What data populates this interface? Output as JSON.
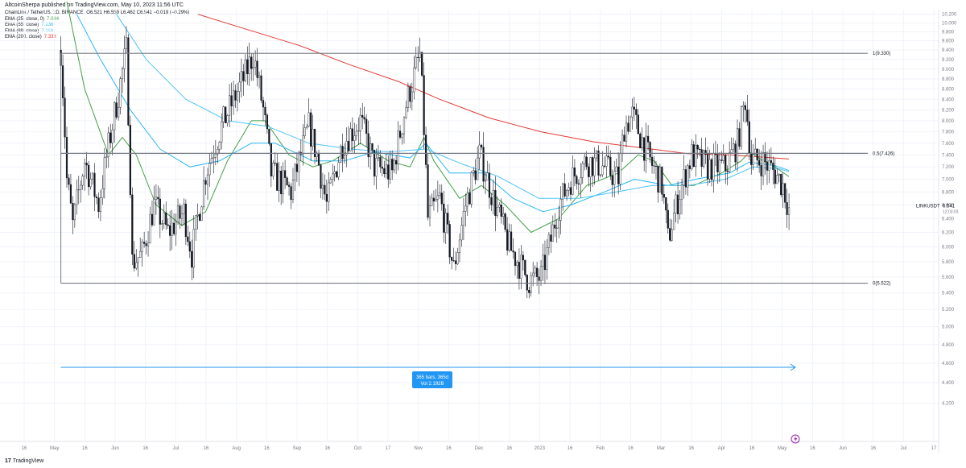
{
  "header": {
    "publisher_line": "AltcoinSherpa published on TradingView.com, May 10, 2023 11:56 UTC"
  },
  "symbol": {
    "name_line": "ChainLink / TetherUS, 1D, BINANCE",
    "ohlc": "O6.521 H6.559 L6.462 C6.541 −0.019 (−0.29%)",
    "ticker_tag": "LINKUSDT",
    "last_price": "6.541",
    "countdown": "12:03:03"
  },
  "indicators": [
    {
      "label": "EMA (25, close, 0)",
      "value": "7.044",
      "color": "#43a047"
    },
    {
      "label": "EMA (55, close)",
      "value": "7.136",
      "color": "#29b6f6"
    },
    {
      "label": "EMA (89, close)",
      "value": "7.118",
      "color": "#4fc3f7"
    },
    {
      "label": "EMA (200, close)",
      "value": "7.333",
      "color": "#e53935"
    }
  ],
  "fib_levels": [
    {
      "label": "1(9.330)",
      "price": 9.33
    },
    {
      "label": "0.5(7.426)",
      "price": 7.426
    },
    {
      "label": "0(5.522)",
      "price": 5.522
    }
  ],
  "measure_tool": {
    "line1": "365 bars, 365d",
    "line2": "Vol 2.192B",
    "color": "#2196f3"
  },
  "footer": {
    "logo_text": "TradingView",
    "logo_mark": "17"
  },
  "chart_data": {
    "type": "candlestick",
    "title": "ChainLink / TetherUS, 1D, BINANCE",
    "ylim": [
      4.0,
      10.25
    ],
    "y_scale": "log",
    "y_ticks": [
      "10.200",
      "10.000",
      "9.800",
      "9.600",
      "9.400",
      "9.200",
      "9.000",
      "8.800",
      "8.600",
      "8.400",
      "8.200",
      "8.000",
      "7.800",
      "7.600",
      "7.400",
      "7.200",
      "7.000",
      "6.800",
      "6.600",
      "6.400",
      "6.200",
      "6.000",
      "5.800",
      "5.600",
      "5.400",
      "5.200",
      "5.000",
      "4.800",
      "4.600",
      "4.400",
      "4.200"
    ],
    "x_ticks": [
      "16",
      "May",
      "16",
      "Jun",
      "16",
      "Jul",
      "16",
      "Aug",
      "16",
      "Sep",
      "16",
      "Oct",
      "17",
      "Nov",
      "16",
      "Dec",
      "16",
      "2023",
      "16",
      "Feb",
      "16",
      "Mar",
      "16",
      "Apr",
      "16",
      "May",
      "16",
      "Jun",
      "16",
      "Jul",
      "17"
    ],
    "price_path": [
      [
        "2022-05-08",
        9.4
      ],
      [
        "2022-05-11",
        7.0
      ],
      [
        "2022-05-14",
        6.3
      ],
      [
        "2022-05-20",
        7.3
      ],
      [
        "2022-05-27",
        6.6
      ],
      [
        "2022-06-06",
        8.5
      ],
      [
        "2022-06-10",
        9.4
      ],
      [
        "2022-06-13",
        5.8
      ],
      [
        "2022-06-18",
        5.9
      ],
      [
        "2022-06-24",
        6.6
      ],
      [
        "2022-07-01",
        6.2
      ],
      [
        "2022-07-09",
        6.5
      ],
      [
        "2022-07-13",
        5.9
      ],
      [
        "2022-07-20",
        7.1
      ],
      [
        "2022-07-28",
        7.9
      ],
      [
        "2022-08-08",
        8.8
      ],
      [
        "2022-08-13",
        9.3
      ],
      [
        "2022-08-18",
        8.2
      ],
      [
        "2022-08-22",
        7.1
      ],
      [
        "2022-09-01",
        6.8
      ],
      [
        "2022-09-10",
        7.9
      ],
      [
        "2022-09-14",
        7.4
      ],
      [
        "2022-09-19",
        6.6
      ],
      [
        "2022-09-27",
        7.6
      ],
      [
        "2022-10-06",
        8.0
      ],
      [
        "2022-10-13",
        7.2
      ],
      [
        "2022-10-22",
        7.1
      ],
      [
        "2022-10-29",
        8.3
      ],
      [
        "2022-11-05",
        9.3
      ],
      [
        "2022-11-09",
        6.4
      ],
      [
        "2022-11-15",
        6.7
      ],
      [
        "2022-11-22",
        5.7
      ],
      [
        "2022-11-28",
        6.6
      ],
      [
        "2022-12-05",
        7.4
      ],
      [
        "2022-12-13",
        6.6
      ],
      [
        "2022-12-20",
        6.0
      ],
      [
        "2022-12-30",
        5.55
      ],
      [
        "2023-01-05",
        5.6
      ],
      [
        "2023-01-10",
        6.1
      ],
      [
        "2023-01-14",
        6.6
      ],
      [
        "2023-01-20",
        7.0
      ],
      [
        "2023-01-28",
        7.3
      ],
      [
        "2023-02-06",
        7.2
      ],
      [
        "2023-02-13",
        7.0
      ],
      [
        "2023-02-16",
        7.9
      ],
      [
        "2023-02-20",
        8.1
      ],
      [
        "2023-03-01",
        7.3
      ],
      [
        "2023-03-07",
        6.9
      ],
      [
        "2023-03-10",
        6.1
      ],
      [
        "2023-03-16",
        6.8
      ],
      [
        "2023-03-22",
        7.4
      ],
      [
        "2023-03-30",
        7.2
      ],
      [
        "2023-04-08",
        7.2
      ],
      [
        "2023-04-14",
        7.6
      ],
      [
        "2023-04-18",
        8.4
      ],
      [
        "2023-04-21",
        7.3
      ],
      [
        "2023-04-27",
        7.3
      ],
      [
        "2023-05-03",
        7.1
      ],
      [
        "2023-05-07",
        6.9
      ],
      [
        "2023-05-10",
        6.54
      ]
    ],
    "series": [
      {
        "name": "EMA (25, close, 0)",
        "color": "#43a047",
        "points": [
          [
            "2022-05-11",
            10.5
          ],
          [
            "2022-05-20",
            8.6
          ],
          [
            "2022-06-01",
            7.4
          ],
          [
            "2022-06-08",
            7.7
          ],
          [
            "2022-06-15",
            7.4
          ],
          [
            "2022-06-25",
            6.6
          ],
          [
            "2022-07-08",
            6.3
          ],
          [
            "2022-07-20",
            6.5
          ],
          [
            "2022-07-31",
            7.3
          ],
          [
            "2022-08-12",
            8.0
          ],
          [
            "2022-08-19",
            8.0
          ],
          [
            "2022-08-31",
            7.4
          ],
          [
            "2022-09-12",
            7.2
          ],
          [
            "2022-09-22",
            7.3
          ],
          [
            "2022-10-06",
            7.6
          ],
          [
            "2022-10-20",
            7.3
          ],
          [
            "2022-10-31",
            7.2
          ],
          [
            "2022-11-07",
            7.7
          ],
          [
            "2022-11-12",
            7.3
          ],
          [
            "2022-11-25",
            6.7
          ],
          [
            "2022-12-06",
            6.9
          ],
          [
            "2022-12-18",
            6.6
          ],
          [
            "2022-12-31",
            6.2
          ],
          [
            "2023-01-14",
            6.4
          ],
          [
            "2023-01-28",
            6.9
          ],
          [
            "2023-02-13",
            7.1
          ],
          [
            "2023-02-23",
            7.4
          ],
          [
            "2023-03-03",
            7.3
          ],
          [
            "2023-03-12",
            6.9
          ],
          [
            "2023-03-23",
            6.9
          ],
          [
            "2023-04-06",
            7.1
          ],
          [
            "2023-04-16",
            7.3
          ],
          [
            "2023-04-20",
            7.45
          ],
          [
            "2023-04-27",
            7.3
          ],
          [
            "2023-05-03",
            7.2
          ],
          [
            "2023-05-10",
            7.04
          ]
        ]
      },
      {
        "name": "EMA (55, close)",
        "color": "#29b6f6",
        "points": [
          [
            "2022-05-16",
            10.2
          ],
          [
            "2022-05-28",
            9.2
          ],
          [
            "2022-06-12",
            8.2
          ],
          [
            "2022-06-27",
            7.5
          ],
          [
            "2022-07-12",
            7.2
          ],
          [
            "2022-07-27",
            7.3
          ],
          [
            "2022-08-12",
            7.6
          ],
          [
            "2022-08-24",
            7.6
          ],
          [
            "2022-09-12",
            7.3
          ],
          [
            "2022-09-28",
            7.3
          ],
          [
            "2022-10-13",
            7.45
          ],
          [
            "2022-10-31",
            7.35
          ],
          [
            "2022-11-08",
            7.6
          ],
          [
            "2022-11-20",
            7.1
          ],
          [
            "2022-12-07",
            7.1
          ],
          [
            "2022-12-22",
            6.7
          ],
          [
            "2023-01-06",
            6.5
          ],
          [
            "2023-01-20",
            6.6
          ],
          [
            "2023-02-06",
            6.8
          ],
          [
            "2023-02-21",
            7.0
          ],
          [
            "2023-03-10",
            6.9
          ],
          [
            "2023-03-24",
            7.0
          ],
          [
            "2023-04-10",
            7.1
          ],
          [
            "2023-04-20",
            7.28
          ],
          [
            "2023-05-03",
            7.22
          ],
          [
            "2023-05-10",
            7.14
          ]
        ]
      },
      {
        "name": "EMA (89, close)",
        "color": "#4fc3f7",
        "points": [
          [
            "2022-06-05",
            10.2
          ],
          [
            "2022-06-20",
            9.2
          ],
          [
            "2022-07-10",
            8.4
          ],
          [
            "2022-07-31",
            8.0
          ],
          [
            "2022-08-20",
            7.9
          ],
          [
            "2022-09-10",
            7.6
          ],
          [
            "2022-10-01",
            7.5
          ],
          [
            "2022-10-20",
            7.45
          ],
          [
            "2022-11-08",
            7.5
          ],
          [
            "2022-11-26",
            7.25
          ],
          [
            "2022-12-14",
            7.05
          ],
          [
            "2023-01-04",
            6.7
          ],
          [
            "2023-01-24",
            6.7
          ],
          [
            "2023-02-12",
            6.8
          ],
          [
            "2023-03-02",
            6.9
          ],
          [
            "2023-03-20",
            6.9
          ],
          [
            "2023-04-08",
            7.0
          ],
          [
            "2023-04-22",
            7.2
          ],
          [
            "2023-05-05",
            7.17
          ],
          [
            "2023-05-10",
            7.12
          ]
        ]
      },
      {
        "name": "EMA (200, close)",
        "color": "#e53935",
        "points": [
          [
            "2022-07-16",
            10.2
          ],
          [
            "2022-08-10",
            9.85
          ],
          [
            "2022-09-05",
            9.5
          ],
          [
            "2022-09-30",
            9.1
          ],
          [
            "2022-10-25",
            8.75
          ],
          [
            "2022-11-15",
            8.4
          ],
          [
            "2022-12-10",
            8.05
          ],
          [
            "2023-01-05",
            7.8
          ],
          [
            "2023-02-01",
            7.62
          ],
          [
            "2023-02-25",
            7.52
          ],
          [
            "2023-03-20",
            7.42
          ],
          [
            "2023-04-10",
            7.4
          ],
          [
            "2023-05-10",
            7.33
          ]
        ]
      }
    ],
    "grid": true,
    "legend": "top-left"
  }
}
